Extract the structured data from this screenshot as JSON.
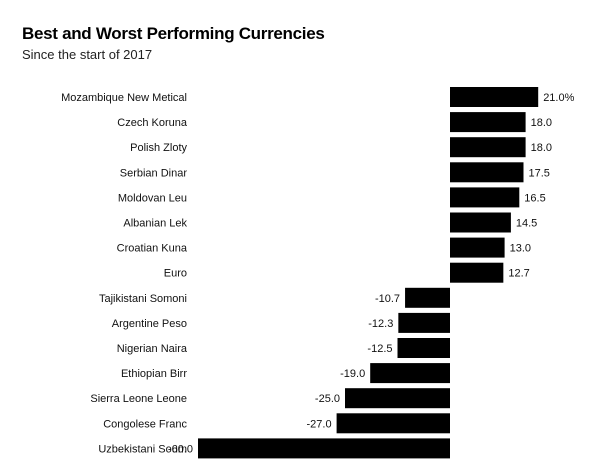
{
  "chart_data": {
    "type": "bar",
    "orientation": "horizontal",
    "title": "Best and Worst Performing Currencies",
    "subtitle": "Since the start of 2017",
    "xlabel": "",
    "ylabel": "",
    "xlim": [
      -60,
      21
    ],
    "grid": false,
    "bar_color": "#000000",
    "categories": [
      "Mozambique New Metical",
      "Czech Koruna",
      "Polish Zloty",
      "Serbian Dinar",
      "Moldovan Leu",
      "Albanian Lek",
      "Croatian Kuna",
      "Euro",
      "Tajikistani Somoni",
      "Argentine Peso",
      "Nigerian Naira",
      "Ethiopian Birr",
      "Sierra Leone Leone",
      "Congolese Franc",
      "Uzbekistani Soum"
    ],
    "values": [
      21.0,
      18.0,
      18.0,
      17.5,
      16.5,
      14.5,
      13.0,
      12.7,
      -10.7,
      -12.3,
      -12.5,
      -19.0,
      -25.0,
      -27.0,
      -60.0
    ],
    "value_labels": [
      "21.0%",
      "18.0",
      "18.0",
      "17.5",
      "16.5",
      "14.5",
      "13.0",
      "12.7",
      "-10.7",
      "-12.3",
      "-12.5",
      "-19.0",
      "-25.0",
      "-27.0",
      "-60.0"
    ]
  }
}
